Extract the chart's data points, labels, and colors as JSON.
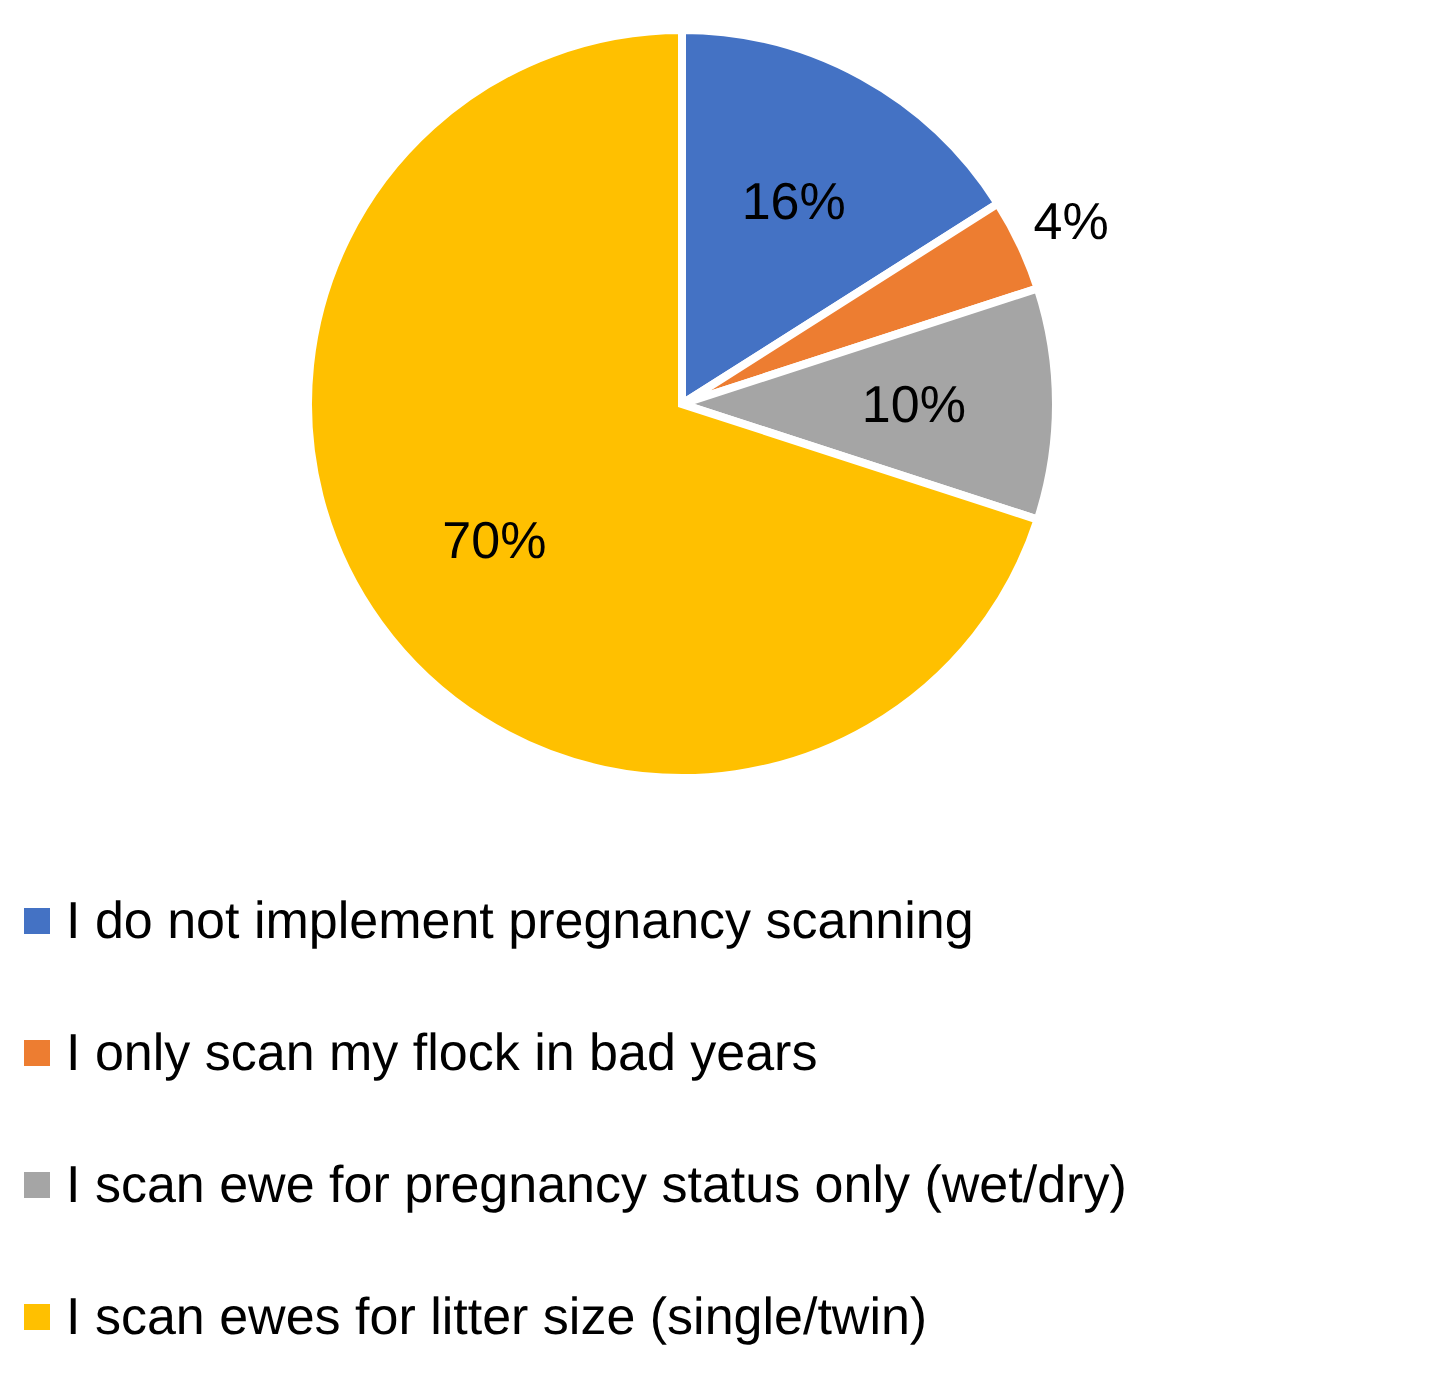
{
  "chart_data": {
    "type": "pie",
    "categories": [
      "I do not implement pregnancy scanning",
      "I only scan my flock in bad years",
      "I scan ewe for pregnancy status only (wet/dry)",
      "I scan ewes for litter size (single/twin)"
    ],
    "values": [
      16,
      4,
      10,
      70
    ],
    "value_labels": [
      "16%",
      "4%",
      "10%",
      "70%"
    ],
    "colors": [
      "#4472c4",
      "#ed7d31",
      "#a5a5a5",
      "#ffc000"
    ],
    "legend": "bottom"
  }
}
